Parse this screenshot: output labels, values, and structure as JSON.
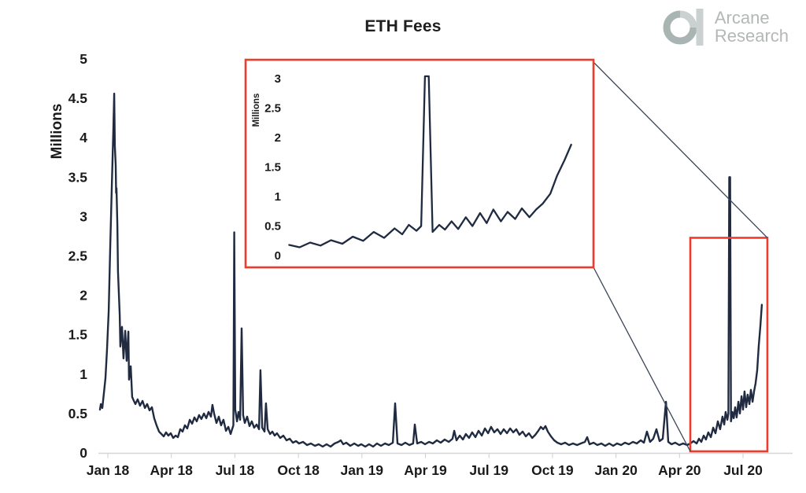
{
  "title": "ETH Fees",
  "logo": {
    "line1": "Arcane",
    "line2": "Research",
    "text_color": "#b3b8b7",
    "mark_dark": "#a9b5b2",
    "mark_light": "#cbd1d0"
  },
  "colors": {
    "line": "#202b42",
    "highlight": "#ee3b2c",
    "axis": "#d6d6d6",
    "tick": "#cfcfcf",
    "connector": "#3a4458",
    "text": "#1a1a1a"
  },
  "chart_data": {
    "type": "line",
    "title": "ETH Fees",
    "ylabel": "Millions",
    "x_unit": "months since Jan 2018",
    "ylim": [
      0,
      5
    ],
    "grid": false,
    "legend": false,
    "x_ticks": [
      {
        "m": 0,
        "label": "Jan 18"
      },
      {
        "m": 3,
        "label": "Apr 18"
      },
      {
        "m": 6,
        "label": "Jul 18"
      },
      {
        "m": 9,
        "label": "Oct 18"
      },
      {
        "m": 12,
        "label": "Jan 19"
      },
      {
        "m": 15,
        "label": "Apr 19"
      },
      {
        "m": 18,
        "label": "Jul 19"
      },
      {
        "m": 21,
        "label": "Oct 19"
      },
      {
        "m": 24,
        "label": "Jan 20"
      },
      {
        "m": 27,
        "label": "Apr 20"
      },
      {
        "m": 30,
        "label": "Jul 20"
      }
    ],
    "y_ticks": [
      {
        "v": 0,
        "label": "0"
      },
      {
        "v": 0.5,
        "label": "0.5"
      },
      {
        "v": 1,
        "label": "1"
      },
      {
        "v": 1.5,
        "label": "1.5"
      },
      {
        "v": 2,
        "label": "2"
      },
      {
        "v": 2.5,
        "label": "2.5"
      },
      {
        "v": 3,
        "label": "3"
      },
      {
        "v": 3.5,
        "label": "3.5"
      },
      {
        "v": 4,
        "label": "4"
      },
      {
        "v": 4.5,
        "label": "4.5"
      },
      {
        "v": 5,
        "label": "5"
      }
    ],
    "series_points": [
      [
        -0.37,
        0.55
      ],
      [
        -0.33,
        0.62
      ],
      [
        -0.26,
        0.57
      ],
      [
        -0.19,
        0.75
      ],
      [
        -0.11,
        0.95
      ],
      [
        -0.04,
        1.3
      ],
      [
        0.04,
        1.8
      ],
      [
        0.11,
        2.6
      ],
      [
        0.19,
        3.4
      ],
      [
        0.26,
        4.1
      ],
      [
        0.3,
        4.56
      ],
      [
        0.33,
        3.9
      ],
      [
        0.37,
        3.65
      ],
      [
        0.39,
        3.3
      ],
      [
        0.41,
        3.36
      ],
      [
        0.45,
        2.9
      ],
      [
        0.48,
        2.3
      ],
      [
        0.56,
        1.75
      ],
      [
        0.59,
        1.35
      ],
      [
        0.67,
        1.6
      ],
      [
        0.74,
        1.2
      ],
      [
        0.82,
        1.55
      ],
      [
        0.89,
        1.17
      ],
      [
        0.97,
        1.54
      ],
      [
        1.0,
        0.93
      ],
      [
        1.08,
        1.1
      ],
      [
        1.15,
        0.71
      ],
      [
        1.23,
        0.66
      ],
      [
        1.3,
        0.62
      ],
      [
        1.41,
        0.68
      ],
      [
        1.52,
        0.6
      ],
      [
        1.64,
        0.66
      ],
      [
        1.75,
        0.57
      ],
      [
        1.86,
        0.62
      ],
      [
        1.97,
        0.54
      ],
      [
        2.08,
        0.58
      ],
      [
        2.19,
        0.44
      ],
      [
        2.3,
        0.35
      ],
      [
        2.42,
        0.27
      ],
      [
        2.53,
        0.24
      ],
      [
        2.64,
        0.21
      ],
      [
        2.75,
        0.26
      ],
      [
        2.86,
        0.22
      ],
      [
        2.97,
        0.25
      ],
      [
        3.09,
        0.19
      ],
      [
        3.2,
        0.22
      ],
      [
        3.31,
        0.2
      ],
      [
        3.42,
        0.3
      ],
      [
        3.53,
        0.27
      ],
      [
        3.64,
        0.35
      ],
      [
        3.75,
        0.31
      ],
      [
        3.87,
        0.42
      ],
      [
        3.98,
        0.37
      ],
      [
        4.09,
        0.45
      ],
      [
        4.2,
        0.4
      ],
      [
        4.31,
        0.48
      ],
      [
        4.42,
        0.43
      ],
      [
        4.54,
        0.5
      ],
      [
        4.65,
        0.44
      ],
      [
        4.76,
        0.52
      ],
      [
        4.87,
        0.46
      ],
      [
        4.94,
        0.61
      ],
      [
        5.02,
        0.5
      ],
      [
        5.13,
        0.38
      ],
      [
        5.24,
        0.46
      ],
      [
        5.35,
        0.35
      ],
      [
        5.46,
        0.42
      ],
      [
        5.58,
        0.28
      ],
      [
        5.69,
        0.33
      ],
      [
        5.8,
        0.24
      ],
      [
        5.87,
        0.3
      ],
      [
        5.93,
        0.35
      ],
      [
        5.97,
        2.8
      ],
      [
        6.02,
        0.55
      ],
      [
        6.1,
        0.4
      ],
      [
        6.17,
        0.52
      ],
      [
        6.25,
        0.42
      ],
      [
        6.32,
        1.58
      ],
      [
        6.39,
        0.48
      ],
      [
        6.47,
        0.38
      ],
      [
        6.58,
        0.46
      ],
      [
        6.69,
        0.34
      ],
      [
        6.8,
        0.4
      ],
      [
        6.91,
        0.32
      ],
      [
        7.03,
        0.36
      ],
      [
        7.14,
        0.3
      ],
      [
        7.21,
        1.05
      ],
      [
        7.29,
        0.32
      ],
      [
        7.4,
        0.27
      ],
      [
        7.47,
        0.63
      ],
      [
        7.55,
        0.3
      ],
      [
        7.66,
        0.24
      ],
      [
        7.77,
        0.27
      ],
      [
        7.88,
        0.22
      ],
      [
        7.99,
        0.25
      ],
      [
        8.14,
        0.19
      ],
      [
        8.29,
        0.22
      ],
      [
        8.44,
        0.16
      ],
      [
        8.59,
        0.18
      ],
      [
        8.74,
        0.13
      ],
      [
        8.89,
        0.15
      ],
      [
        9.03,
        0.12
      ],
      [
        9.22,
        0.14
      ],
      [
        9.41,
        0.1
      ],
      [
        9.59,
        0.12
      ],
      [
        9.78,
        0.09
      ],
      [
        9.96,
        0.11
      ],
      [
        10.15,
        0.08
      ],
      [
        10.33,
        0.11
      ],
      [
        10.52,
        0.08
      ],
      [
        10.71,
        0.12
      ],
      [
        10.89,
        0.14
      ],
      [
        11.0,
        0.16
      ],
      [
        11.12,
        0.11
      ],
      [
        11.26,
        0.13
      ],
      [
        11.45,
        0.09
      ],
      [
        11.64,
        0.12
      ],
      [
        11.82,
        0.09
      ],
      [
        11.97,
        0.11
      ],
      [
        12.16,
        0.08
      ],
      [
        12.34,
        0.11
      ],
      [
        12.53,
        0.08
      ],
      [
        12.71,
        0.12
      ],
      [
        12.9,
        0.09
      ],
      [
        13.09,
        0.12
      ],
      [
        13.27,
        0.1
      ],
      [
        13.46,
        0.13
      ],
      [
        13.57,
        0.63
      ],
      [
        13.68,
        0.12
      ],
      [
        13.87,
        0.1
      ],
      [
        14.05,
        0.13
      ],
      [
        14.24,
        0.1
      ],
      [
        14.42,
        0.12
      ],
      [
        14.5,
        0.36
      ],
      [
        14.61,
        0.12
      ],
      [
        14.8,
        0.14
      ],
      [
        14.98,
        0.11
      ],
      [
        15.17,
        0.14
      ],
      [
        15.35,
        0.12
      ],
      [
        15.54,
        0.16
      ],
      [
        15.72,
        0.13
      ],
      [
        15.91,
        0.17
      ],
      [
        16.1,
        0.14
      ],
      [
        16.28,
        0.18
      ],
      [
        16.36,
        0.28
      ],
      [
        16.47,
        0.16
      ],
      [
        16.62,
        0.22
      ],
      [
        16.77,
        0.17
      ],
      [
        16.91,
        0.24
      ],
      [
        17.06,
        0.19
      ],
      [
        17.21,
        0.26
      ],
      [
        17.36,
        0.2
      ],
      [
        17.51,
        0.28
      ],
      [
        17.66,
        0.22
      ],
      [
        17.81,
        0.31
      ],
      [
        17.96,
        0.25
      ],
      [
        18.1,
        0.33
      ],
      [
        18.25,
        0.26
      ],
      [
        18.4,
        0.3
      ],
      [
        18.55,
        0.24
      ],
      [
        18.7,
        0.3
      ],
      [
        18.85,
        0.25
      ],
      [
        19.0,
        0.31
      ],
      [
        19.15,
        0.26
      ],
      [
        19.29,
        0.3
      ],
      [
        19.44,
        0.23
      ],
      [
        19.59,
        0.27
      ],
      [
        19.74,
        0.21
      ],
      [
        19.89,
        0.25
      ],
      [
        20.04,
        0.19
      ],
      [
        20.19,
        0.23
      ],
      [
        20.33,
        0.28
      ],
      [
        20.45,
        0.33
      ],
      [
        20.56,
        0.3
      ],
      [
        20.67,
        0.34
      ],
      [
        20.78,
        0.27
      ],
      [
        20.93,
        0.21
      ],
      [
        21.08,
        0.16
      ],
      [
        21.23,
        0.13
      ],
      [
        21.41,
        0.11
      ],
      [
        21.6,
        0.13
      ],
      [
        21.78,
        0.1
      ],
      [
        21.97,
        0.12
      ],
      [
        22.16,
        0.1
      ],
      [
        22.34,
        0.12
      ],
      [
        22.53,
        0.14
      ],
      [
        22.64,
        0.2
      ],
      [
        22.75,
        0.11
      ],
      [
        22.94,
        0.13
      ],
      [
        23.12,
        0.1
      ],
      [
        23.31,
        0.12
      ],
      [
        23.49,
        0.09
      ],
      [
        23.68,
        0.12
      ],
      [
        23.87,
        0.09
      ],
      [
        24.05,
        0.12
      ],
      [
        24.24,
        0.1
      ],
      [
        24.42,
        0.13
      ],
      [
        24.61,
        0.11
      ],
      [
        24.8,
        0.14
      ],
      [
        24.98,
        0.12
      ],
      [
        25.17,
        0.16
      ],
      [
        25.32,
        0.13
      ],
      [
        25.46,
        0.27
      ],
      [
        25.61,
        0.14
      ],
      [
        25.76,
        0.18
      ],
      [
        25.91,
        0.3
      ],
      [
        26.06,
        0.15
      ],
      [
        26.21,
        0.18
      ],
      [
        26.36,
        0.65
      ],
      [
        26.47,
        0.14
      ],
      [
        26.62,
        0.11
      ],
      [
        26.8,
        0.13
      ],
      [
        26.99,
        0.1
      ],
      [
        27.17,
        0.12
      ],
      [
        27.36,
        0.1
      ],
      [
        27.51,
        0.12
      ],
      [
        27.66,
        0.15
      ],
      [
        27.81,
        0.12
      ],
      [
        27.92,
        0.18
      ],
      [
        28.03,
        0.14
      ],
      [
        28.14,
        0.22
      ],
      [
        28.25,
        0.17
      ],
      [
        28.36,
        0.26
      ],
      [
        28.48,
        0.2
      ],
      [
        28.59,
        0.32
      ],
      [
        28.7,
        0.25
      ],
      [
        28.81,
        0.4
      ],
      [
        28.92,
        0.3
      ],
      [
        29.03,
        0.46
      ],
      [
        29.11,
        0.36
      ],
      [
        29.18,
        0.52
      ],
      [
        29.26,
        0.42
      ],
      [
        29.31,
        0.5
      ],
      [
        29.35,
        3.5
      ],
      [
        29.39,
        3.5
      ],
      [
        29.43,
        0.4
      ],
      [
        29.5,
        0.52
      ],
      [
        29.56,
        0.44
      ],
      [
        29.63,
        0.58
      ],
      [
        29.7,
        0.45
      ],
      [
        29.78,
        0.65
      ],
      [
        29.85,
        0.5
      ],
      [
        29.93,
        0.72
      ],
      [
        30.0,
        0.55
      ],
      [
        30.07,
        0.78
      ],
      [
        30.15,
        0.58
      ],
      [
        30.22,
        0.74
      ],
      [
        30.3,
        0.62
      ],
      [
        30.37,
        0.8
      ],
      [
        30.45,
        0.65
      ],
      [
        30.52,
        0.78
      ],
      [
        30.59,
        0.88
      ],
      [
        30.67,
        1.05
      ],
      [
        30.74,
        1.35
      ],
      [
        30.82,
        1.62
      ],
      [
        30.89,
        1.88
      ]
    ],
    "inset": {
      "ylabel": "Millions",
      "ylim": [
        0,
        3
      ],
      "clip": 3.04,
      "x_range": [
        27.9,
        31.05
      ],
      "y_ticks": [
        {
          "v": 0,
          "label": "0"
        },
        {
          "v": 0.5,
          "label": "0.5"
        },
        {
          "v": 1,
          "label": "1"
        },
        {
          "v": 1.5,
          "label": "1.5"
        },
        {
          "v": 2,
          "label": "2"
        },
        {
          "v": 2.5,
          "label": "2.5"
        },
        {
          "v": 3,
          "label": "3"
        }
      ]
    },
    "highlight": {
      "x_range": [
        27.51,
        31.15
      ],
      "y_range": [
        0.02,
        2.73
      ]
    }
  }
}
